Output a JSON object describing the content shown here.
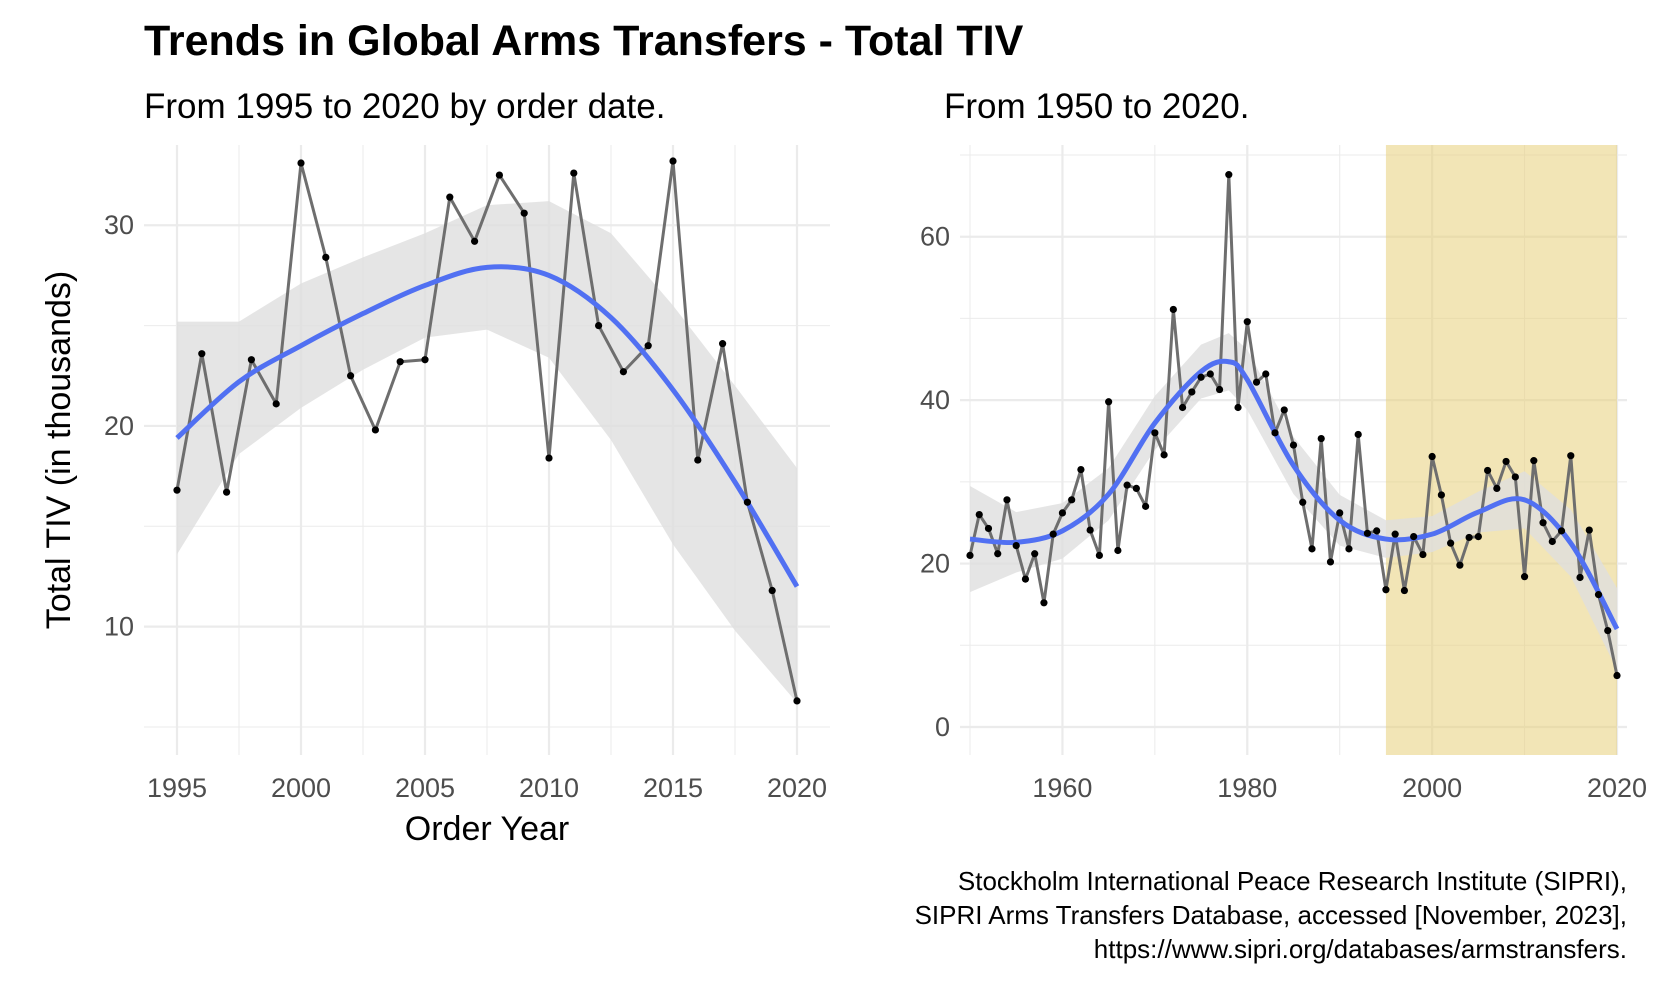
{
  "title": "Trends in Global Arms Transfers - Total TIV",
  "ylabel": "Total TIV (in thousands)",
  "caption": [
    "Stockholm International Peace Research Institute (SIPRI),",
    "SIPRI Arms Transfers Database, accessed [November, 2023],",
    "https://www.sipri.org/databases/armstransfers."
  ],
  "colors": {
    "line": "#6e6e6e",
    "point": "#000000",
    "smooth": "#5170f2",
    "ribbon": "#dedede",
    "highlight": "#e8cf7a",
    "grid": "#ebebeb"
  },
  "chart_data": [
    {
      "type": "line",
      "subtitle": "From 1995 to 2020 by order date.",
      "xlabel": "Order Year",
      "xlim": [
        1995,
        2020
      ],
      "ylim": [
        5,
        33.5
      ],
      "xticks": [
        1995,
        2000,
        2005,
        2010,
        2015,
        2020
      ],
      "yticks": [
        10,
        20,
        30
      ],
      "x": [
        1995,
        1996,
        1997,
        1998,
        1999,
        2000,
        2001,
        2002,
        2003,
        2004,
        2005,
        2006,
        2007,
        2008,
        2009,
        2010,
        2011,
        2012,
        2013,
        2014,
        2015,
        2016,
        2017,
        2018,
        2019,
        2020
      ],
      "y": [
        16.8,
        23.6,
        16.7,
        23.3,
        21.1,
        33.1,
        28.4,
        22.5,
        19.8,
        23.2,
        23.3,
        31.4,
        29.2,
        32.5,
        30.6,
        18.4,
        32.6,
        25.0,
        22.7,
        24.0,
        33.2,
        18.3,
        24.1,
        16.2,
        11.8,
        6.3
      ],
      "smooth": {
        "x": [
          1995,
          1997.5,
          2000,
          2002.5,
          2005,
          2007.5,
          2010,
          2012.5,
          2015,
          2017.5,
          2020
        ],
        "y": [
          19.4,
          22.2,
          24.0,
          25.6,
          27.0,
          27.9,
          27.5,
          25.4,
          21.8,
          17.2,
          12.0
        ],
        "lower": [
          13.6,
          18.6,
          20.9,
          22.8,
          24.4,
          24.8,
          23.4,
          19.3,
          14.1,
          9.8,
          6.2
        ],
        "upper": [
          25.2,
          25.2,
          27.1,
          28.4,
          29.6,
          31.0,
          31.2,
          29.6,
          26.0,
          22.0,
          17.9
        ]
      }
    },
    {
      "type": "line",
      "subtitle": "From 1950 to 2020.",
      "xlabel": "",
      "xlim": [
        1950,
        2020
      ],
      "ylim": [
        0,
        70
      ],
      "xticks": [
        1960,
        1980,
        2000,
        2020
      ],
      "yticks": [
        0,
        20,
        40,
        60
      ],
      "highlight_range": [
        1995,
        2020
      ],
      "x": [
        1950,
        1951,
        1952,
        1953,
        1954,
        1955,
        1956,
        1957,
        1958,
        1959,
        1960,
        1961,
        1962,
        1963,
        1964,
        1965,
        1966,
        1967,
        1968,
        1969,
        1970,
        1971,
        1972,
        1973,
        1974,
        1975,
        1976,
        1977,
        1978,
        1979,
        1980,
        1981,
        1982,
        1983,
        1984,
        1985,
        1986,
        1987,
        1988,
        1989,
        1990,
        1991,
        1992,
        1993,
        1994,
        1995,
        1996,
        1997,
        1998,
        1999,
        2000,
        2001,
        2002,
        2003,
        2004,
        2005,
        2006,
        2007,
        2008,
        2009,
        2010,
        2011,
        2012,
        2013,
        2014,
        2015,
        2016,
        2017,
        2018,
        2019,
        2020
      ],
      "y": [
        21,
        26,
        24.3,
        21.2,
        27.8,
        22.2,
        18.1,
        21.2,
        15.2,
        23.6,
        26.2,
        27.8,
        31.5,
        24.1,
        21.0,
        39.8,
        21.6,
        29.6,
        29.2,
        27.0,
        36.0,
        33.3,
        51.1,
        39.1,
        41.0,
        42.8,
        43.2,
        41.3,
        67.6,
        39.1,
        49.6,
        42.2,
        43.2,
        36.0,
        38.8,
        34.5,
        27.5,
        21.8,
        35.3,
        20.2,
        26.2,
        21.8,
        35.8,
        23.7,
        24.0,
        16.8,
        23.6,
        16.7,
        23.3,
        21.1,
        33.1,
        28.4,
        22.5,
        19.8,
        23.2,
        23.3,
        31.4,
        29.2,
        32.5,
        30.6,
        18.4,
        32.6,
        25.0,
        22.7,
        24.0,
        33.2,
        18.3,
        24.1,
        16.2,
        11.8,
        6.3
      ],
      "smooth": {
        "x": [
          1950,
          1955,
          1960,
          1965,
          1970,
          1975,
          1978,
          1980,
          1985,
          1990,
          1995,
          2000,
          2005,
          2010,
          2015,
          2020
        ],
        "y": [
          23.0,
          22.6,
          24.0,
          28.5,
          37.2,
          43.5,
          44.7,
          42.5,
          32.0,
          25.3,
          23.0,
          23.6,
          26.3,
          27.8,
          22.5,
          12.0
        ],
        "lower": [
          16.5,
          18.9,
          20.6,
          25.3,
          33.9,
          40.2,
          41.2,
          38.8,
          28.5,
          22.2,
          20.7,
          21.4,
          23.8,
          24.3,
          18.4,
          7.0
        ],
        "upper": [
          29.5,
          26.3,
          27.4,
          31.7,
          40.5,
          46.8,
          48.2,
          46.2,
          35.5,
          28.4,
          25.3,
          25.8,
          28.8,
          31.3,
          26.6,
          17.0
        ]
      }
    }
  ]
}
